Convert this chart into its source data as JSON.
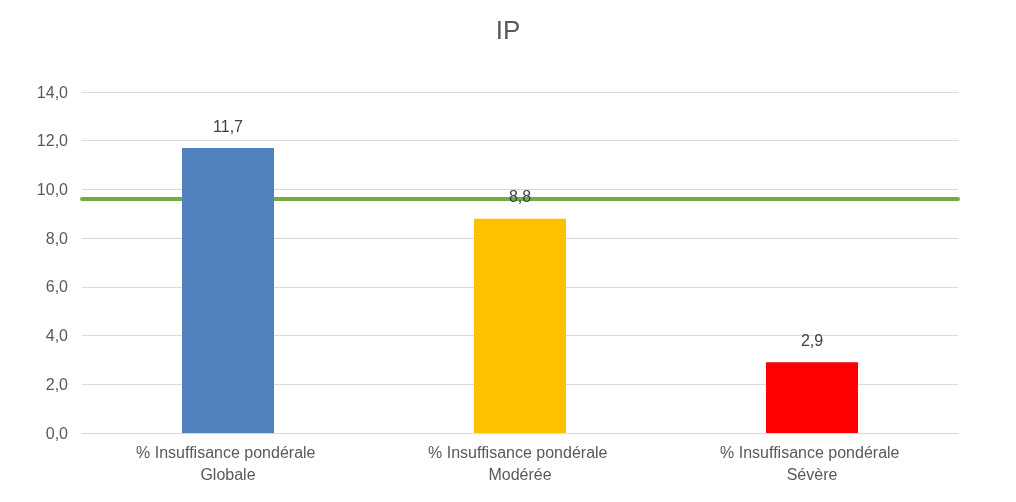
{
  "chart_data": {
    "type": "bar",
    "title": "IP",
    "categories": [
      "% Insuffisance pondérale Globale",
      "% Insuffisance pondérale Modérée",
      "% Insuffisance pondérale Sévère"
    ],
    "values": [
      11.7,
      8.8,
      2.9
    ],
    "colors": [
      "#4f81bd",
      "#ffc000",
      "#ff0000"
    ],
    "value_labels": [
      "11,7",
      "8,8",
      "2,9"
    ],
    "ylim": [
      0,
      14
    ],
    "yticks": [
      {
        "value": 0,
        "label": "0,0"
      },
      {
        "value": 2,
        "label": "2,0"
      },
      {
        "value": 4,
        "label": "4,0"
      },
      {
        "value": 6,
        "label": "6,0"
      },
      {
        "value": 8,
        "label": "8,0"
      },
      {
        "value": 10,
        "label": "10,0"
      },
      {
        "value": 12,
        "label": "12,0"
      },
      {
        "value": 14,
        "label": "14,0"
      }
    ],
    "grid": "y",
    "ref_lines": [
      {
        "axis": "y",
        "value": 9.6,
        "color": "#70ad47",
        "line_style": "solid"
      }
    ]
  }
}
